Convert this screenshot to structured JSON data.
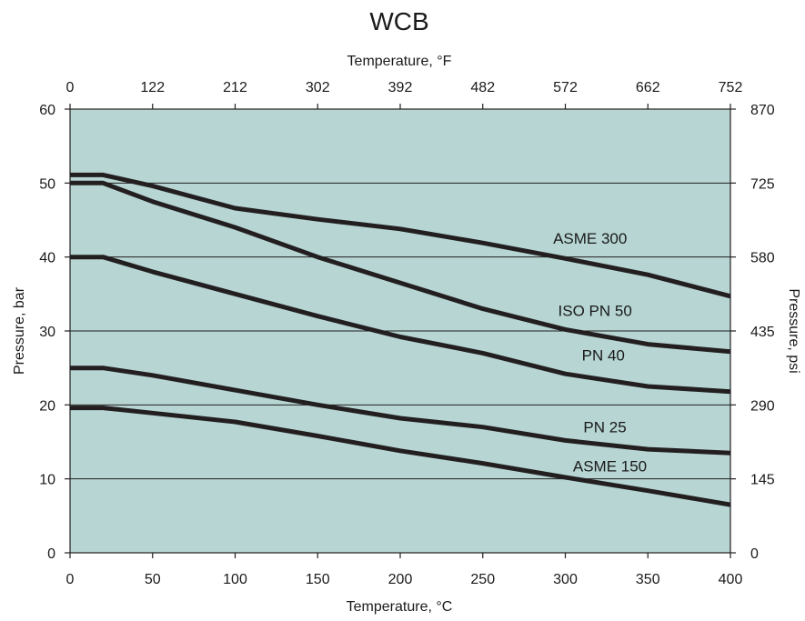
{
  "chart_data": {
    "type": "line",
    "title": "WCB",
    "xlabel": "Temperature, °C",
    "ylabel": "Pressure, bar",
    "top_xlabel": "Temperature, °F",
    "right_ylabel": "Pressure, psi",
    "xlim": [
      0,
      400
    ],
    "ylim": [
      0,
      60
    ],
    "grid": "horizontal",
    "x_ticks": [
      0,
      50,
      100,
      150,
      200,
      250,
      300,
      350,
      400
    ],
    "y_ticks": [
      0,
      10,
      20,
      30,
      40,
      50,
      60
    ],
    "top_ticks": [
      "0",
      "122",
      "212",
      "302",
      "392",
      "482",
      "572",
      "662",
      "752"
    ],
    "top_tick_positions_c": [
      0,
      50,
      100,
      150,
      200,
      250,
      300,
      350,
      400
    ],
    "right_ticks": [
      "0",
      "145",
      "290",
      "435",
      "580",
      "725",
      "870"
    ],
    "right_tick_positions_bar": [
      0,
      10,
      20,
      30,
      40,
      50,
      60
    ],
    "colors": {
      "plot_background": "#b6d5d3",
      "series_line": "#231f20",
      "axis": "#231f20"
    },
    "series": [
      {
        "name": "ASME 300",
        "label_at": [
          315,
          41.8
        ],
        "x": [
          0,
          20,
          50,
          100,
          150,
          200,
          250,
          300,
          350,
          400
        ],
        "y": [
          51.1,
          51.1,
          49.6,
          46.6,
          45.1,
          43.8,
          41.9,
          39.8,
          37.6,
          34.7
        ]
      },
      {
        "name": "ISO PN 50",
        "label_at": [
          318,
          32.0
        ],
        "x": [
          0,
          20,
          50,
          100,
          150,
          200,
          250,
          300,
          350,
          400
        ],
        "y": [
          50,
          50,
          47.5,
          44,
          40,
          36.5,
          33,
          30.2,
          28.2,
          27.2
        ]
      },
      {
        "name": "PN 40",
        "label_at": [
          323,
          26.0
        ],
        "x": [
          0,
          20,
          50,
          100,
          150,
          200,
          250,
          300,
          350,
          400
        ],
        "y": [
          40,
          40,
          38,
          35,
          32,
          29.2,
          27,
          24.2,
          22.5,
          21.8
        ]
      },
      {
        "name": "PN 25",
        "label_at": [
          324,
          16.3
        ],
        "x": [
          0,
          20,
          50,
          100,
          150,
          200,
          250,
          300,
          350,
          400
        ],
        "y": [
          25,
          25,
          24,
          22,
          20,
          18.2,
          17,
          15.2,
          14,
          13.5
        ]
      },
      {
        "name": "ASME 150",
        "label_at": [
          327,
          11.0
        ],
        "x": [
          0,
          20,
          50,
          100,
          150,
          200,
          250,
          300,
          350,
          400
        ],
        "y": [
          19.6,
          19.6,
          18.9,
          17.7,
          15.8,
          13.8,
          12.1,
          10.2,
          8.4,
          6.5
        ]
      }
    ]
  }
}
